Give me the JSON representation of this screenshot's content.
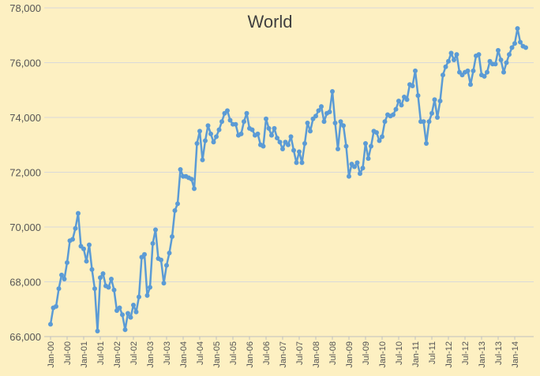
{
  "chart_data": {
    "type": "line",
    "title": "World",
    "xlabel": "",
    "ylabel": "",
    "ylim": [
      66000,
      78000
    ],
    "yticks": [
      66000,
      68000,
      70000,
      72000,
      74000,
      76000,
      78000
    ],
    "ytick_labels": [
      "66,000",
      "68,000",
      "70,000",
      "72,000",
      "74,000",
      "76,000",
      "78,000"
    ],
    "xtick_labels": [
      "Jan-00",
      "Jul-00",
      "Jan-01",
      "Jul-01",
      "Jan-02",
      "Jul-02",
      "Jan-03",
      "Jul-03",
      "Jan-04",
      "Jul-04",
      "Jan-05",
      "Jul-05",
      "Jan-06",
      "Jul-06",
      "Jan-07",
      "Jul-07",
      "Jan-08",
      "Jul-08",
      "Jan-09",
      "Jul-09",
      "Jan-10",
      "Jul-10",
      "Jan-11",
      "Jul-11",
      "Jan-12",
      "Jul-12",
      "Jan-13",
      "Jul-13",
      "Jan-14"
    ],
    "grid": true,
    "legend": "none",
    "colors": {
      "line": "#5b9bd5",
      "grid": "#d9d9d9",
      "background": "#fdf0c2"
    },
    "series": [
      {
        "start": "Jan-00",
        "frequency": "monthly",
        "values": [
          66450,
          67050,
          67100,
          67750,
          68250,
          68100,
          68700,
          69500,
          69550,
          69950,
          70500,
          69300,
          69200,
          68750,
          69350,
          68450,
          67750,
          66200,
          68150,
          68300,
          67850,
          67800,
          68100,
          67700,
          66950,
          67050,
          66800,
          66250,
          66850,
          66700,
          67150,
          66900,
          67450,
          68900,
          69000,
          67500,
          67800,
          69400,
          69900,
          68850,
          68800,
          67950,
          68600,
          69050,
          69650,
          70600,
          70850,
          72100,
          71850,
          71850,
          71800,
          71750,
          71400,
          73050,
          73500,
          72450,
          73150,
          73700,
          73400,
          73100,
          73300,
          73550,
          73850,
          74150,
          74250,
          73900,
          73750,
          73750,
          73350,
          73400,
          73850,
          74150,
          73600,
          73550,
          73350,
          73400,
          73000,
          72950,
          73950,
          73600,
          73350,
          73600,
          73250,
          73100,
          72850,
          73100,
          73000,
          73300,
          72800,
          72350,
          72750,
          72350,
          73050,
          73800,
          73500,
          73950,
          74050,
          74250,
          74400,
          73850,
          74150,
          74200,
          74950,
          73800,
          72850,
          73850,
          73700,
          72950,
          71850,
          72300,
          72200,
          72350,
          71950,
          72150,
          73050,
          72500,
          72950,
          73500,
          73450,
          73150,
          73300,
          73850,
          74100,
          74050,
          74100,
          74300,
          74600,
          74450,
          74750,
          74650,
          75200,
          75150,
          75700,
          74800,
          73850,
          73850,
          73050,
          73850,
          74150,
          74650,
          74000,
          74600,
          75550,
          75850,
          76050,
          76350,
          76100,
          76300,
          75650,
          75550,
          75650,
          75700,
          75200,
          75700,
          76250,
          76300,
          75550,
          75500,
          75650,
          76050,
          75950,
          75950,
          76450,
          76100,
          75650,
          76000,
          76300,
          76550,
          76700,
          77250,
          76750,
          76600,
          76550
        ]
      }
    ]
  }
}
